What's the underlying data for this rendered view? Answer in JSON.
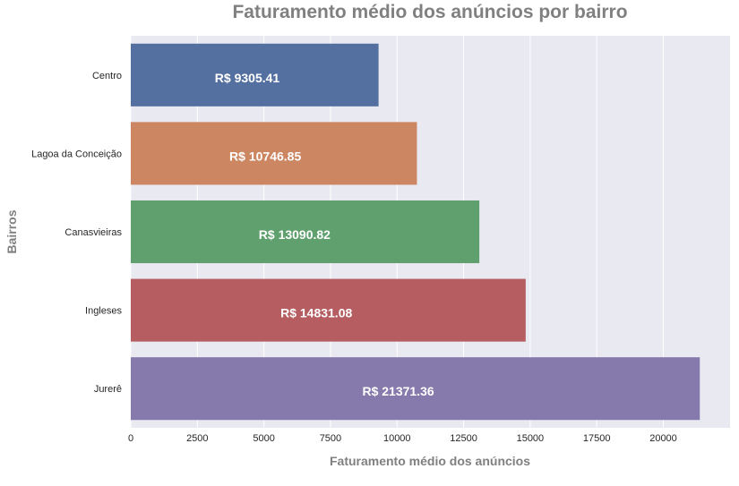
{
  "chart_data": {
    "type": "bar",
    "orientation": "horizontal",
    "title": "Faturamento médio dos anúncios por bairro",
    "xlabel": "Faturamento médio dos anúncios",
    "ylabel": "Bairros",
    "categories": [
      "Centro",
      "Lagoa da Conceição",
      "Canasvieiras",
      "Ingleses",
      "Jurerê"
    ],
    "values": [
      9305.41,
      10746.85,
      13090.82,
      14831.08,
      21371.36
    ],
    "value_labels": [
      "R$ 9305.41",
      "R$ 10746.85",
      "R$ 13090.82",
      "R$ 14831.08",
      "R$ 21371.36"
    ],
    "colors": [
      "#5470a1",
      "#cc8762",
      "#5fa06e",
      "#b55d60",
      "#8679ab"
    ],
    "xticks": [
      "0",
      "2500",
      "5000",
      "7500",
      "10000",
      "12500",
      "15000",
      "17500",
      "20000"
    ],
    "xlim": [
      0,
      22500
    ],
    "grid": true,
    "background": "#e9e9f1",
    "grid_color": "#ffffff"
  }
}
